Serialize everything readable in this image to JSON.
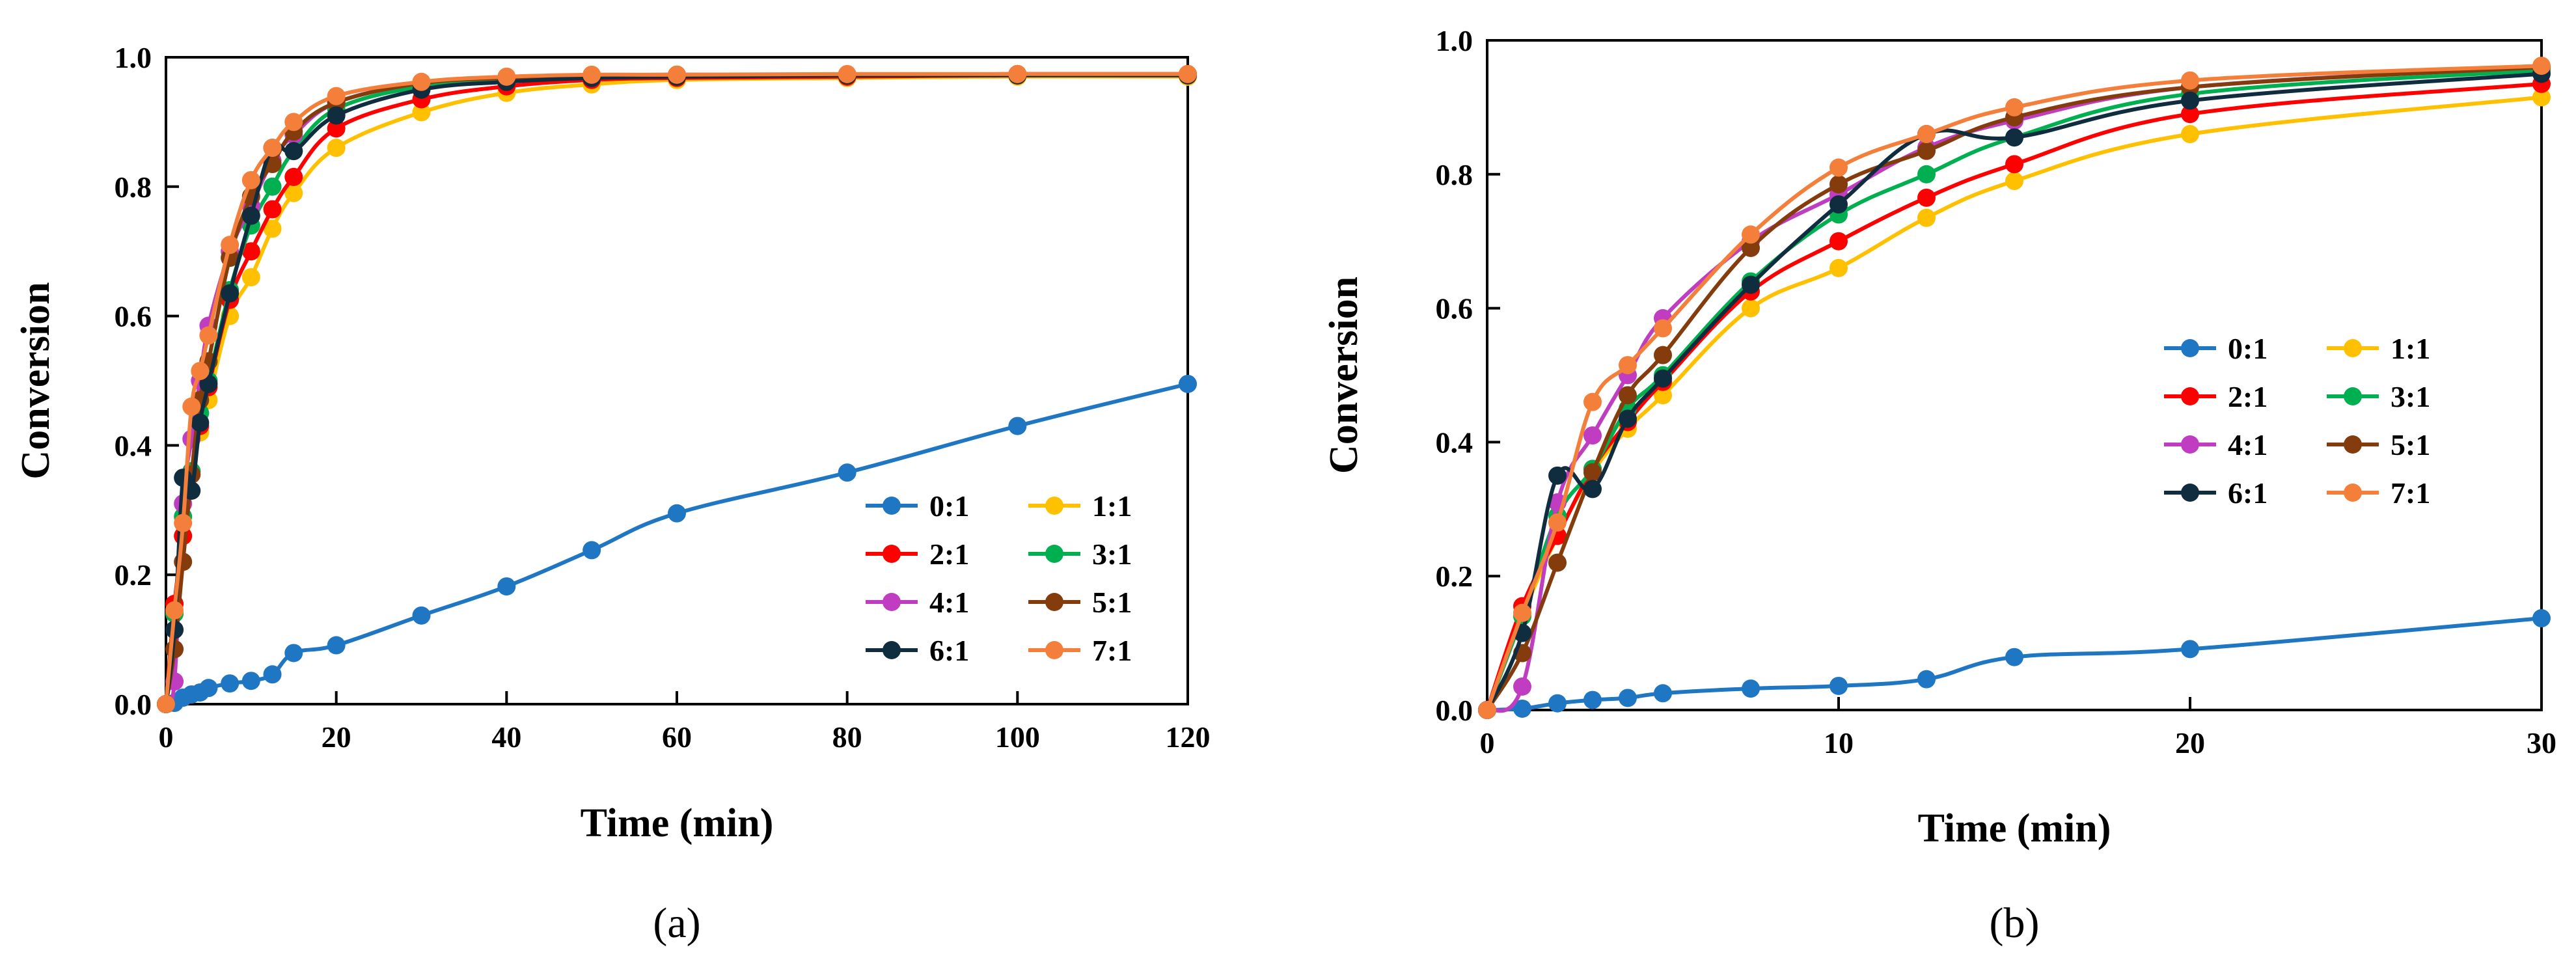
{
  "chart_data": [
    {
      "type": "line",
      "panel_label": "(a)",
      "title": "",
      "xlabel": "Time (min)",
      "ylabel": "Conversion",
      "xlim": [
        0,
        120
      ],
      "ylim": [
        0,
        1.0
      ],
      "xticks": [
        0,
        20,
        40,
        60,
        80,
        100,
        120
      ],
      "yticks": [
        0.0,
        0.2,
        0.4,
        0.6,
        0.8,
        1.0
      ],
      "xtick_labels": [
        "0",
        "20",
        "40",
        "60",
        "80",
        "100",
        "120"
      ],
      "ytick_labels": [
        "0.0",
        "0.2",
        "0.4",
        "0.6",
        "0.8",
        "1.0"
      ],
      "grid": false,
      "legend_position": "bottom-right",
      "x": [
        0,
        1,
        2,
        3,
        4,
        5,
        7.5,
        10,
        12.5,
        15,
        20,
        30,
        40,
        50,
        60,
        80,
        100,
        120
      ],
      "series": [
        {
          "name": "0:1",
          "color": "#1f77c4",
          "values": [
            0,
            0.002,
            0.01,
            0.015,
            0.018,
            0.025,
            0.032,
            0.036,
            0.046,
            0.079,
            0.091,
            0.137,
            0.182,
            0.238,
            0.295,
            0.358,
            0.43,
            0.495
          ]
        },
        {
          "name": "1:1",
          "color": "#ffc000",
          "values": [
            0,
            0.14,
            0.26,
            0.355,
            0.42,
            0.47,
            0.6,
            0.66,
            0.735,
            0.79,
            0.86,
            0.915,
            0.945,
            0.958,
            0.965,
            0.968,
            0.97,
            0.97
          ]
        },
        {
          "name": "2:1",
          "color": "#ff0000",
          "values": [
            0,
            0.155,
            0.26,
            0.36,
            0.43,
            0.49,
            0.625,
            0.7,
            0.765,
            0.815,
            0.89,
            0.935,
            0.955,
            0.965,
            0.968,
            0.97,
            0.972,
            0.972
          ]
        },
        {
          "name": "3:1",
          "color": "#00b050",
          "values": [
            0,
            0.14,
            0.29,
            0.36,
            0.45,
            0.5,
            0.64,
            0.74,
            0.8,
            0.855,
            0.92,
            0.955,
            0.965,
            0.97,
            0.972,
            0.972,
            0.973,
            0.973
          ]
        },
        {
          "name": "4:1",
          "color": "#c03cc0",
          "values": [
            0,
            0.035,
            0.31,
            0.41,
            0.5,
            0.585,
            0.7,
            0.77,
            0.84,
            0.88,
            0.93,
            0.96,
            0.968,
            0.972,
            0.973,
            0.973,
            0.974,
            0.974
          ]
        },
        {
          "name": "5:1",
          "color": "#843c0c",
          "values": [
            0,
            0.085,
            0.22,
            0.355,
            0.47,
            0.53,
            0.69,
            0.785,
            0.835,
            0.885,
            0.93,
            0.96,
            0.968,
            0.972,
            0.973,
            0.973,
            0.974,
            0.974
          ]
        },
        {
          "name": "6:1",
          "color": "#0f2d3f",
          "values": [
            0,
            0.115,
            0.35,
            0.33,
            0.435,
            0.495,
            0.635,
            0.755,
            0.86,
            0.855,
            0.91,
            0.95,
            0.962,
            0.968,
            0.97,
            0.972,
            0.972,
            0.972
          ]
        },
        {
          "name": "7:1",
          "color": "#f47f3a",
          "values": [
            0,
            0.145,
            0.28,
            0.46,
            0.515,
            0.57,
            0.71,
            0.81,
            0.86,
            0.9,
            0.94,
            0.962,
            0.97,
            0.973,
            0.973,
            0.974,
            0.974,
            0.974
          ]
        }
      ]
    },
    {
      "type": "line",
      "panel_label": "(b)",
      "title": "",
      "xlabel": "Time (min)",
      "ylabel": "Conversion",
      "xlim": [
        0,
        30
      ],
      "ylim": [
        0,
        1.0
      ],
      "xticks": [
        0,
        10,
        20,
        30
      ],
      "yticks": [
        0.0,
        0.2,
        0.4,
        0.6,
        0.8,
        1.0
      ],
      "xtick_labels": [
        "0",
        "10",
        "20",
        "30"
      ],
      "ytick_labels": [
        "0.0",
        "0.2",
        "0.4",
        "0.6",
        "0.8",
        "1.0"
      ],
      "grid": false,
      "legend_position": "right",
      "x": [
        0,
        1,
        2,
        3,
        4,
        5,
        7.5,
        10,
        12.5,
        15,
        20,
        30
      ],
      "series": [
        {
          "name": "0:1",
          "color": "#1f77c4",
          "values": [
            0,
            0.002,
            0.01,
            0.015,
            0.018,
            0.025,
            0.032,
            0.036,
            0.046,
            0.079,
            0.091,
            0.137
          ]
        },
        {
          "name": "1:1",
          "color": "#ffc000",
          "values": [
            0,
            0.14,
            0.26,
            0.355,
            0.42,
            0.47,
            0.6,
            0.66,
            0.735,
            0.79,
            0.86,
            0.915
          ]
        },
        {
          "name": "2:1",
          "color": "#ff0000",
          "values": [
            0,
            0.155,
            0.26,
            0.36,
            0.43,
            0.49,
            0.625,
            0.7,
            0.765,
            0.815,
            0.89,
            0.935
          ]
        },
        {
          "name": "3:1",
          "color": "#00b050",
          "values": [
            0,
            0.14,
            0.29,
            0.36,
            0.45,
            0.5,
            0.64,
            0.74,
            0.8,
            0.855,
            0.92,
            0.955
          ]
        },
        {
          "name": "4:1",
          "color": "#c03cc0",
          "values": [
            0,
            0.035,
            0.31,
            0.41,
            0.5,
            0.585,
            0.7,
            0.77,
            0.84,
            0.88,
            0.93,
            0.96
          ]
        },
        {
          "name": "5:1",
          "color": "#843c0c",
          "values": [
            0,
            0.085,
            0.22,
            0.355,
            0.47,
            0.53,
            0.69,
            0.785,
            0.835,
            0.885,
            0.93,
            0.96
          ]
        },
        {
          "name": "6:1",
          "color": "#0f2d3f",
          "values": [
            0,
            0.115,
            0.35,
            0.33,
            0.435,
            0.495,
            0.635,
            0.755,
            0.86,
            0.855,
            0.91,
            0.95
          ]
        },
        {
          "name": "7:1",
          "color": "#f47f3a",
          "values": [
            0,
            0.145,
            0.28,
            0.46,
            0.515,
            0.57,
            0.71,
            0.81,
            0.86,
            0.9,
            0.94,
            0.962
          ]
        }
      ]
    }
  ]
}
